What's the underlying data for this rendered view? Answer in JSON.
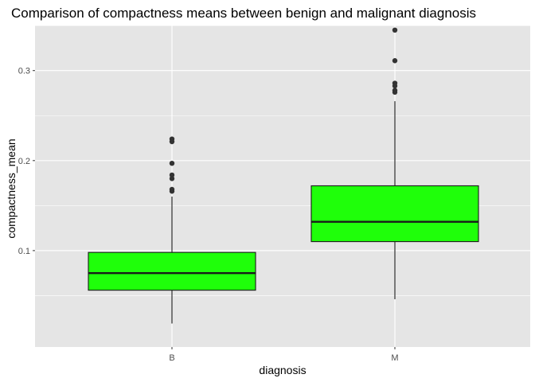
{
  "chart_data": {
    "type": "boxplot",
    "title": "Comparison of compactness means between benign and malignant diagnosis",
    "xlabel": "diagnosis",
    "ylabel": "compactness_mean",
    "categories": [
      "B",
      "M"
    ],
    "yticks": [
      0.1,
      0.2,
      0.3
    ],
    "ytick_labels": [
      "0.1",
      "0.2",
      "0.3"
    ],
    "ylim": [
      0.0,
      0.36
    ],
    "grid": true,
    "fill_color": "#1fff0a",
    "outline_color": "#1a1a1a",
    "panel_color": "#e5e5e5",
    "grid_color": "#ffffff",
    "boxes": [
      {
        "category": "B",
        "whisker_low": 0.019,
        "q1": 0.056,
        "median": 0.075,
        "q3": 0.098,
        "whisker_high": 0.16,
        "outliers": [
          0.224,
          0.221,
          0.197,
          0.184,
          0.18,
          0.168,
          0.166
        ]
      },
      {
        "category": "M",
        "whisker_low": 0.046,
        "q1": 0.11,
        "median": 0.132,
        "q3": 0.172,
        "whisker_high": 0.266,
        "outliers": [
          0.345,
          0.311,
          0.286,
          0.283,
          0.278,
          0.276
        ]
      }
    ]
  }
}
